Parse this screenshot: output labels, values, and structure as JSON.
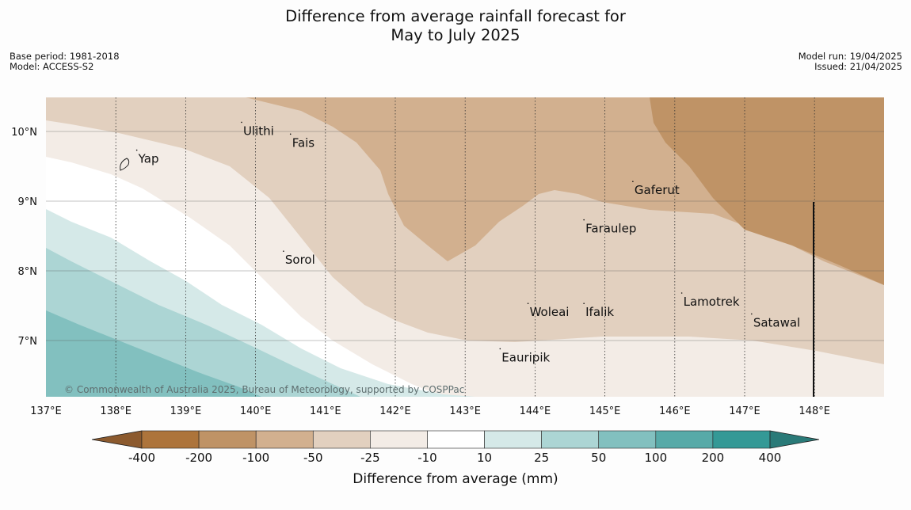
{
  "title": {
    "line1": "Difference from average rainfall forecast for",
    "line2": "May to July 2025"
  },
  "meta_left": {
    "base_period": "Base period: 1981-2018",
    "model": "Model: ACCESS-S2"
  },
  "meta_right": {
    "model_run": "Model run: 19/04/2025",
    "issued": "Issued: 21/04/2025"
  },
  "map": {
    "lon_range": [
      137,
      149
    ],
    "lat_range": [
      6.2,
      10.5
    ],
    "lon_ticks": [
      "137°E",
      "138°E",
      "139°E",
      "140°E",
      "141°E",
      "142°E",
      "143°E",
      "144°E",
      "145°E",
      "146°E",
      "147°E",
      "148°E"
    ],
    "lat_ticks": [
      "10°N",
      "9°N",
      "8°N",
      "7°N"
    ],
    "grid": true,
    "places": [
      {
        "name": "Yap",
        "lon": 138.3,
        "lat": 9.55
      },
      {
        "name": "Ulithi",
        "lon": 139.8,
        "lat": 9.95
      },
      {
        "name": "Fais",
        "lon": 140.5,
        "lat": 9.78
      },
      {
        "name": "Gaferut",
        "lon": 145.4,
        "lat": 9.1
      },
      {
        "name": "Faraulep",
        "lon": 144.7,
        "lat": 8.55
      },
      {
        "name": "Sorol",
        "lon": 140.4,
        "lat": 8.1
      },
      {
        "name": "Woleai",
        "lon": 143.9,
        "lat": 7.35
      },
      {
        "name": "Ifalik",
        "lon": 144.7,
        "lat": 7.35
      },
      {
        "name": "Lamotrek",
        "lon": 146.1,
        "lat": 7.5
      },
      {
        "name": "Satawal",
        "lon": 147.1,
        "lat": 7.2
      },
      {
        "name": "Eauripik",
        "lon": 143.5,
        "lat": 6.7
      }
    ],
    "copyright": "© Commonwealth of Australia 2025, Bureau of Meteorology, supported by COSPPac"
  },
  "colorbar": {
    "labels": [
      "-400",
      "-200",
      "-100",
      "-50",
      "-25",
      "-10",
      "10",
      "25",
      "50",
      "100",
      "200",
      "400"
    ],
    "colors": [
      "#8c5a2e",
      "#ad743b",
      "#bf9366",
      "#d2b08f",
      "#e2d0bf",
      "#f3ece6",
      "#ffffff",
      "#d5e9e8",
      "#acd5d4",
      "#82c0bf",
      "#57aaa8",
      "#349996",
      "#2a7a78"
    ],
    "title": "Difference from average (mm)"
  }
}
